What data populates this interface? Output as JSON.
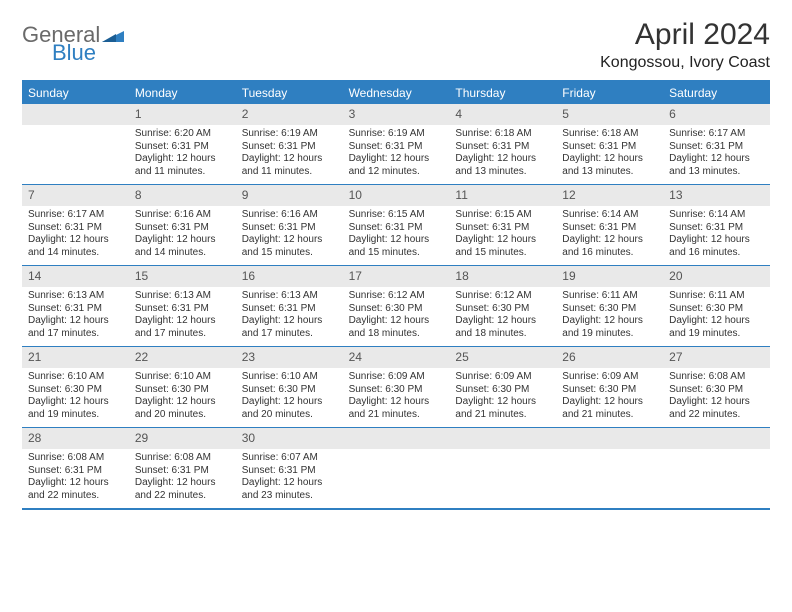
{
  "logo": {
    "text1": "General",
    "text2": "Blue",
    "shape_color": "#2f7fc1"
  },
  "title": {
    "month": "April 2024",
    "location": "Kongossou, Ivory Coast"
  },
  "colors": {
    "accent": "#2f7fc1",
    "header_text": "#ffffff",
    "daynum_bg": "#e9e9e9",
    "text": "#333333"
  },
  "day_headers": [
    "Sunday",
    "Monday",
    "Tuesday",
    "Wednesday",
    "Thursday",
    "Friday",
    "Saturday"
  ],
  "weeks": [
    [
      {
        "n": "",
        "sr": "",
        "ss": "",
        "dl": ""
      },
      {
        "n": "1",
        "sr": "Sunrise: 6:20 AM",
        "ss": "Sunset: 6:31 PM",
        "dl": "Daylight: 12 hours and 11 minutes."
      },
      {
        "n": "2",
        "sr": "Sunrise: 6:19 AM",
        "ss": "Sunset: 6:31 PM",
        "dl": "Daylight: 12 hours and 11 minutes."
      },
      {
        "n": "3",
        "sr": "Sunrise: 6:19 AM",
        "ss": "Sunset: 6:31 PM",
        "dl": "Daylight: 12 hours and 12 minutes."
      },
      {
        "n": "4",
        "sr": "Sunrise: 6:18 AM",
        "ss": "Sunset: 6:31 PM",
        "dl": "Daylight: 12 hours and 13 minutes."
      },
      {
        "n": "5",
        "sr": "Sunrise: 6:18 AM",
        "ss": "Sunset: 6:31 PM",
        "dl": "Daylight: 12 hours and 13 minutes."
      },
      {
        "n": "6",
        "sr": "Sunrise: 6:17 AM",
        "ss": "Sunset: 6:31 PM",
        "dl": "Daylight: 12 hours and 13 minutes."
      }
    ],
    [
      {
        "n": "7",
        "sr": "Sunrise: 6:17 AM",
        "ss": "Sunset: 6:31 PM",
        "dl": "Daylight: 12 hours and 14 minutes."
      },
      {
        "n": "8",
        "sr": "Sunrise: 6:16 AM",
        "ss": "Sunset: 6:31 PM",
        "dl": "Daylight: 12 hours and 14 minutes."
      },
      {
        "n": "9",
        "sr": "Sunrise: 6:16 AM",
        "ss": "Sunset: 6:31 PM",
        "dl": "Daylight: 12 hours and 15 minutes."
      },
      {
        "n": "10",
        "sr": "Sunrise: 6:15 AM",
        "ss": "Sunset: 6:31 PM",
        "dl": "Daylight: 12 hours and 15 minutes."
      },
      {
        "n": "11",
        "sr": "Sunrise: 6:15 AM",
        "ss": "Sunset: 6:31 PM",
        "dl": "Daylight: 12 hours and 15 minutes."
      },
      {
        "n": "12",
        "sr": "Sunrise: 6:14 AM",
        "ss": "Sunset: 6:31 PM",
        "dl": "Daylight: 12 hours and 16 minutes."
      },
      {
        "n": "13",
        "sr": "Sunrise: 6:14 AM",
        "ss": "Sunset: 6:31 PM",
        "dl": "Daylight: 12 hours and 16 minutes."
      }
    ],
    [
      {
        "n": "14",
        "sr": "Sunrise: 6:13 AM",
        "ss": "Sunset: 6:31 PM",
        "dl": "Daylight: 12 hours and 17 minutes."
      },
      {
        "n": "15",
        "sr": "Sunrise: 6:13 AM",
        "ss": "Sunset: 6:31 PM",
        "dl": "Daylight: 12 hours and 17 minutes."
      },
      {
        "n": "16",
        "sr": "Sunrise: 6:13 AM",
        "ss": "Sunset: 6:31 PM",
        "dl": "Daylight: 12 hours and 17 minutes."
      },
      {
        "n": "17",
        "sr": "Sunrise: 6:12 AM",
        "ss": "Sunset: 6:30 PM",
        "dl": "Daylight: 12 hours and 18 minutes."
      },
      {
        "n": "18",
        "sr": "Sunrise: 6:12 AM",
        "ss": "Sunset: 6:30 PM",
        "dl": "Daylight: 12 hours and 18 minutes."
      },
      {
        "n": "19",
        "sr": "Sunrise: 6:11 AM",
        "ss": "Sunset: 6:30 PM",
        "dl": "Daylight: 12 hours and 19 minutes."
      },
      {
        "n": "20",
        "sr": "Sunrise: 6:11 AM",
        "ss": "Sunset: 6:30 PM",
        "dl": "Daylight: 12 hours and 19 minutes."
      }
    ],
    [
      {
        "n": "21",
        "sr": "Sunrise: 6:10 AM",
        "ss": "Sunset: 6:30 PM",
        "dl": "Daylight: 12 hours and 19 minutes."
      },
      {
        "n": "22",
        "sr": "Sunrise: 6:10 AM",
        "ss": "Sunset: 6:30 PM",
        "dl": "Daylight: 12 hours and 20 minutes."
      },
      {
        "n": "23",
        "sr": "Sunrise: 6:10 AM",
        "ss": "Sunset: 6:30 PM",
        "dl": "Daylight: 12 hours and 20 minutes."
      },
      {
        "n": "24",
        "sr": "Sunrise: 6:09 AM",
        "ss": "Sunset: 6:30 PM",
        "dl": "Daylight: 12 hours and 21 minutes."
      },
      {
        "n": "25",
        "sr": "Sunrise: 6:09 AM",
        "ss": "Sunset: 6:30 PM",
        "dl": "Daylight: 12 hours and 21 minutes."
      },
      {
        "n": "26",
        "sr": "Sunrise: 6:09 AM",
        "ss": "Sunset: 6:30 PM",
        "dl": "Daylight: 12 hours and 21 minutes."
      },
      {
        "n": "27",
        "sr": "Sunrise: 6:08 AM",
        "ss": "Sunset: 6:30 PM",
        "dl": "Daylight: 12 hours and 22 minutes."
      }
    ],
    [
      {
        "n": "28",
        "sr": "Sunrise: 6:08 AM",
        "ss": "Sunset: 6:31 PM",
        "dl": "Daylight: 12 hours and 22 minutes."
      },
      {
        "n": "29",
        "sr": "Sunrise: 6:08 AM",
        "ss": "Sunset: 6:31 PM",
        "dl": "Daylight: 12 hours and 22 minutes."
      },
      {
        "n": "30",
        "sr": "Sunrise: 6:07 AM",
        "ss": "Sunset: 6:31 PM",
        "dl": "Daylight: 12 hours and 23 minutes."
      },
      {
        "n": "",
        "sr": "",
        "ss": "",
        "dl": ""
      },
      {
        "n": "",
        "sr": "",
        "ss": "",
        "dl": ""
      },
      {
        "n": "",
        "sr": "",
        "ss": "",
        "dl": ""
      },
      {
        "n": "",
        "sr": "",
        "ss": "",
        "dl": ""
      }
    ]
  ]
}
